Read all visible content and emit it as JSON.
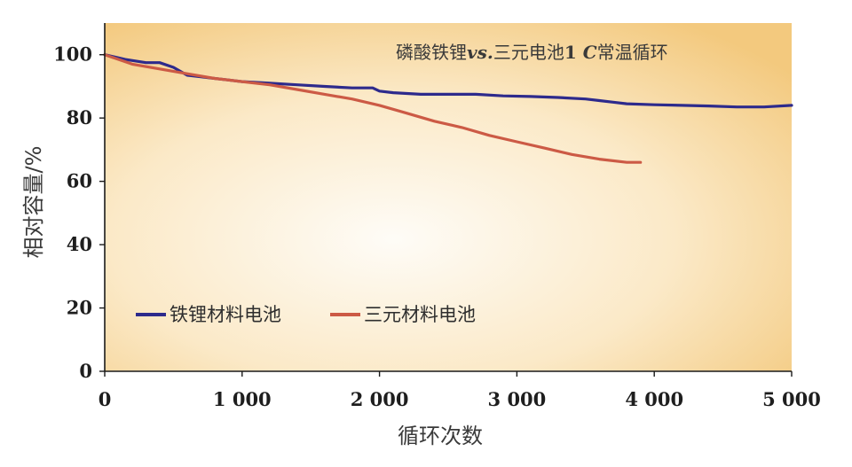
{
  "chart_data": {
    "type": "line",
    "title": "磷酸铁锂vs.三元电池1 C常温循环",
    "title_parts": {
      "pre": "磷酸铁锂",
      "vs": "vs.",
      "mid": "三元电池",
      "one": "1 ",
      "c": "C",
      "post": "常温循环"
    },
    "xlabel": "循环次数",
    "ylabel": "相对容量/%",
    "xlim": [
      0,
      5000
    ],
    "ylim": [
      0,
      110
    ],
    "xticks": [
      0,
      1000,
      2000,
      3000,
      4000,
      5000
    ],
    "xtick_labels": [
      "0",
      "1 000",
      "2 000",
      "3 000",
      "4 000",
      "5 000"
    ],
    "yticks": [
      0,
      20,
      40,
      60,
      80,
      100
    ],
    "ytick_labels": [
      "0",
      "20",
      "40",
      "60",
      "80",
      "100"
    ],
    "grid": false,
    "legend_position": "bottom-left",
    "series": [
      {
        "name": "铁锂材料电池",
        "color": "#2d2a8c",
        "x": [
          0,
          150,
          300,
          400,
          500,
          600,
          700,
          800,
          1000,
          1200,
          1400,
          1600,
          1800,
          1950,
          2000,
          2100,
          2300,
          2500,
          2700,
          2900,
          3100,
          3300,
          3500,
          3600,
          3700,
          3800,
          4000,
          4200,
          4400,
          4600,
          4800,
          5000
        ],
        "y": [
          100,
          98.5,
          97.5,
          97.5,
          96,
          93.5,
          93,
          92.5,
          91.5,
          91,
          90.5,
          90,
          89.5,
          89.5,
          88.5,
          88,
          87.5,
          87.5,
          87.5,
          87,
          86.8,
          86.5,
          86,
          85.5,
          85,
          84.5,
          84.2,
          84,
          83.8,
          83.5,
          83.5,
          84
        ]
      },
      {
        "name": "三元材料电池",
        "color": "#cc5a45",
        "x": [
          0,
          200,
          400,
          600,
          800,
          1000,
          1200,
          1400,
          1600,
          1800,
          2000,
          2200,
          2400,
          2600,
          2800,
          3000,
          3200,
          3400,
          3600,
          3800,
          3900
        ],
        "y": [
          100,
          97,
          95.5,
          94,
          92.5,
          91.5,
          90.5,
          89,
          87.5,
          86,
          84,
          81.5,
          79,
          77,
          74.5,
          72.5,
          70.5,
          68.5,
          67,
          66,
          66
        ]
      }
    ]
  }
}
